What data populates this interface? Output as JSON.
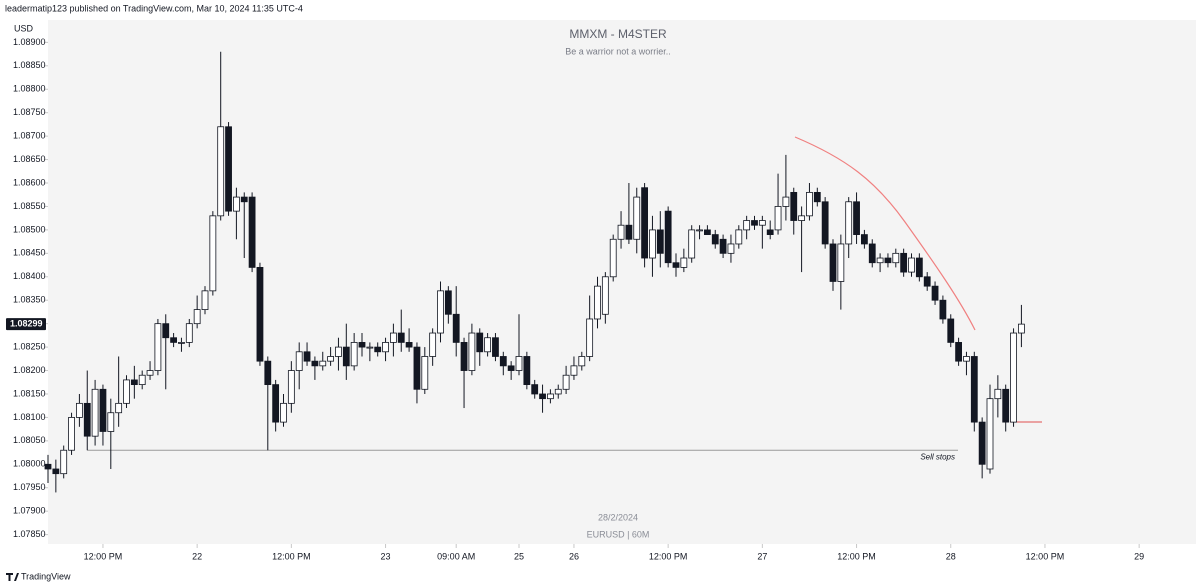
{
  "header": "leadermatip123 published on TradingView.com, Mar 10, 2024 11:35 UTC-4",
  "footer": "TradingView",
  "chart_data": {
    "type": "candlestick",
    "title": "MMXM - M4STER",
    "subtitle": "Be a warrior not a worrier..",
    "watermark_date": "28/2/2024",
    "watermark_symbol": "EURUSD | 60M",
    "currency": "USD",
    "up_color": "#ffffff",
    "down_color": "#131722",
    "last_price": 1.08299,
    "sell_stops": {
      "text": "Sell stops",
      "level": 1.0803
    },
    "ylim": [
      1.0783,
      1.0892
    ],
    "yticks": [
      {
        "value": 1.0785,
        "label": "1.07850"
      },
      {
        "value": 1.079,
        "label": "1.07900"
      },
      {
        "value": 1.0795,
        "label": "1.07950"
      },
      {
        "value": 1.08,
        "label": "1.08000"
      },
      {
        "value": 1.0805,
        "label": "1.08050"
      },
      {
        "value": 1.081,
        "label": "1.08100"
      },
      {
        "value": 1.0815,
        "label": "1.08150"
      },
      {
        "value": 1.082,
        "label": "1.08200"
      },
      {
        "value": 1.0825,
        "label": "1.08250"
      },
      {
        "value": 1.083,
        "label": "1.08300"
      },
      {
        "value": 1.0835,
        "label": "1.08350"
      },
      {
        "value": 1.084,
        "label": "1.08400"
      },
      {
        "value": 1.0845,
        "label": "1.08450"
      },
      {
        "value": 1.085,
        "label": "1.08500"
      },
      {
        "value": 1.0855,
        "label": "1.08550"
      },
      {
        "value": 1.086,
        "label": "1.08600"
      },
      {
        "value": 1.0865,
        "label": "1.08650"
      },
      {
        "value": 1.087,
        "label": "1.08700"
      },
      {
        "value": 1.0875,
        "label": "1.08750"
      },
      {
        "value": 1.088,
        "label": "1.08800"
      },
      {
        "value": 1.0885,
        "label": "1.08850"
      },
      {
        "value": 1.089,
        "label": "1.08900"
      }
    ],
    "categories": [
      null,
      null,
      null,
      null,
      null,
      null,
      null,
      "12:00 PM",
      null,
      null,
      null,
      null,
      null,
      null,
      null,
      null,
      null,
      null,
      null,
      "22",
      null,
      null,
      null,
      null,
      null,
      null,
      null,
      null,
      null,
      null,
      null,
      "12:00 PM",
      null,
      null,
      null,
      null,
      null,
      null,
      null,
      null,
      null,
      null,
      null,
      "23",
      null,
      null,
      null,
      null,
      null,
      null,
      null,
      null,
      "09:00 AM",
      null,
      null,
      null,
      null,
      null,
      null,
      null,
      "25",
      null,
      null,
      null,
      null,
      null,
      null,
      "26",
      null,
      null,
      null,
      null,
      null,
      null,
      null,
      null,
      null,
      null,
      null,
      "12:00 PM",
      null,
      null,
      null,
      null,
      null,
      null,
      null,
      null,
      null,
      null,
      null,
      "27",
      null,
      null,
      null,
      null,
      null,
      null,
      null,
      null,
      null,
      null,
      null,
      "12:00 PM",
      null,
      null,
      null,
      null,
      null,
      null,
      null,
      null,
      null,
      null,
      null,
      "28",
      null,
      null,
      null,
      null,
      null,
      null,
      null,
      null,
      null,
      null,
      null,
      "12:00 PM",
      null,
      null,
      null,
      null,
      null,
      null,
      null,
      null,
      null,
      null,
      null,
      "29"
    ],
    "open": [
      1.08,
      1.0799,
      1.0798,
      1.0803,
      1.081,
      1.0813,
      1.0806,
      1.0816,
      1.0807,
      1.0811,
      1.0813,
      1.0818,
      1.0817,
      1.0819,
      1.082,
      1.083,
      1.0827,
      1.0826,
      1.0826,
      1.083,
      1.0833,
      1.0837,
      1.0853,
      1.0872,
      1.0854,
      1.0857,
      1.0857,
      1.0842,
      1.0822,
      1.0817,
      1.0809,
      1.0813,
      1.082,
      1.0824,
      1.0822,
      1.0821,
      1.0822,
      1.0823,
      1.0825,
      1.0821,
      1.0826,
      1.0825,
      1.0825,
      1.0824,
      1.0826,
      1.0828,
      1.0826,
      1.0825,
      1.0816,
      1.0823,
      1.0828,
      1.0837,
      1.0832,
      1.0826,
      1.082,
      1.0828,
      1.0824,
      1.0827,
      1.0823,
      1.0821,
      1.082,
      1.0823,
      1.0817,
      1.0815,
      1.0814,
      1.0815,
      1.0816,
      1.0819,
      1.0821,
      1.0823,
      1.0831,
      1.0832,
      1.084,
      1.0848,
      1.0851,
      1.0848,
      1.0859,
      1.0844,
      1.085,
      1.0854,
      1.0843,
      1.0842,
      1.0844,
      1.085,
      1.085,
      1.0849,
      1.0848,
      1.0845,
      1.0847,
      1.085,
      1.0852,
      1.0851,
      1.085,
      1.085,
      1.0855,
      1.0858,
      1.0852,
      1.0853,
      1.0858,
      1.0856,
      1.0847,
      1.0839,
      1.0847,
      1.0856,
      1.0849,
      1.0847,
      1.0843,
      1.0844,
      1.0843,
      1.0845,
      1.0841,
      1.0844,
      1.084,
      1.0838,
      1.0835,
      1.0831,
      1.0826,
      1.0822,
      1.0823,
      1.0809,
      1.0799,
      1.0814,
      1.0816,
      1.0809,
      1.0828,
      null,
      null,
      null,
      null,
      null,
      null,
      null,
      null,
      null,
      null,
      null,
      null,
      null,
      null,
      null
    ],
    "high": [
      1.0802,
      1.0801,
      1.0804,
      1.0811,
      1.0815,
      1.082,
      1.0818,
      1.0817,
      1.0814,
      1.0823,
      1.0819,
      1.0821,
      1.082,
      1.0822,
      1.0831,
      1.0832,
      1.0828,
      1.0827,
      1.0831,
      1.0836,
      1.0838,
      1.0854,
      1.0888,
      1.0873,
      1.0859,
      1.0858,
      1.0858,
      1.0843,
      1.0823,
      1.0818,
      1.0815,
      1.0822,
      1.0826,
      1.0826,
      1.0823,
      1.0824,
      1.0825,
      1.0827,
      1.083,
      1.0828,
      1.0828,
      1.0826,
      1.0826,
      1.0827,
      1.083,
      1.0833,
      1.0829,
      1.0826,
      1.0825,
      1.0829,
      1.0839,
      1.0838,
      1.0838,
      1.0827,
      1.083,
      1.0829,
      1.0828,
      1.0828,
      1.0824,
      1.0822,
      1.0832,
      1.0824,
      1.0818,
      1.0817,
      1.0816,
      1.0817,
      1.0821,
      1.0823,
      1.0824,
      1.0836,
      1.084,
      1.0841,
      1.0849,
      1.0854,
      1.086,
      1.0859,
      1.086,
      1.0853,
      1.0854,
      1.0855,
      1.0845,
      1.0846,
      1.0851,
      1.0851,
      1.0851,
      1.085,
      1.0849,
      1.0849,
      1.0851,
      1.0853,
      1.0853,
      1.0853,
      1.0852,
      1.0862,
      1.0866,
      1.0859,
      1.0855,
      1.086,
      1.0859,
      1.0857,
      1.0848,
      1.0849,
      1.0857,
      1.0858,
      1.085,
      1.0848,
      1.0845,
      1.0845,
      1.0846,
      1.0846,
      1.0845,
      1.0845,
      1.0841,
      1.0839,
      1.0836,
      1.0832,
      1.0827,
      1.0824,
      1.0824,
      1.081,
      1.0817,
      1.0819,
      1.0817,
      1.0829,
      1.0834,
      null,
      null,
      null,
      null,
      null,
      null,
      null,
      null,
      null,
      null,
      null,
      null,
      null,
      null,
      null
    ],
    "low": [
      1.0796,
      1.0794,
      1.0797,
      1.0802,
      1.0808,
      1.0803,
      1.0804,
      1.0804,
      1.0799,
      1.0808,
      1.0812,
      1.0814,
      1.0816,
      1.0818,
      1.0819,
      1.0816,
      1.0825,
      1.0824,
      1.0825,
      1.0829,
      1.0832,
      1.0836,
      1.0852,
      1.0853,
      1.0848,
      1.0844,
      1.0841,
      1.0821,
      1.0803,
      1.0807,
      1.0808,
      1.0811,
      1.0816,
      1.0821,
      1.0818,
      1.082,
      1.0821,
      1.082,
      1.0818,
      1.082,
      1.0823,
      1.0822,
      1.0823,
      1.0822,
      1.0823,
      1.0824,
      1.0824,
      1.0813,
      1.0815,
      1.0821,
      1.0826,
      1.083,
      1.0823,
      1.0812,
      1.0819,
      1.0821,
      1.0823,
      1.0822,
      1.0819,
      1.0818,
      1.0819,
      1.0816,
      1.0814,
      1.0811,
      1.0813,
      1.0814,
      1.0815,
      1.0818,
      1.082,
      1.0822,
      1.0829,
      1.083,
      1.0839,
      1.0846,
      1.0847,
      1.0845,
      1.0842,
      1.084,
      1.0842,
      1.0842,
      1.084,
      1.0841,
      1.0843,
      1.0848,
      1.0849,
      1.0846,
      1.0844,
      1.0843,
      1.0846,
      1.0848,
      1.085,
      1.0846,
      1.0848,
      1.0849,
      1.0852,
      1.0849,
      1.0841,
      1.0852,
      1.0855,
      1.0846,
      1.0837,
      1.0833,
      1.0844,
      1.0847,
      1.0846,
      1.0842,
      1.0841,
      1.0842,
      1.0842,
      1.084,
      1.084,
      1.0839,
      1.0837,
      1.0834,
      1.083,
      1.0825,
      1.0821,
      1.0819,
      1.0807,
      1.0797,
      1.0798,
      1.081,
      1.0807,
      1.0808,
      1.0825,
      null,
      null,
      null,
      null,
      null,
      null,
      null,
      null,
      null,
      null,
      null,
      null,
      null,
      null,
      null
    ],
    "close": [
      1.0799,
      1.0798,
      1.0803,
      1.081,
      1.0813,
      1.0806,
      1.0816,
      1.0807,
      1.0811,
      1.0813,
      1.0818,
      1.0817,
      1.0819,
      1.082,
      1.083,
      1.0827,
      1.0826,
      1.0826,
      1.083,
      1.0833,
      1.0837,
      1.0853,
      1.0872,
      1.0854,
      1.0857,
      1.0856,
      1.0842,
      1.0822,
      1.0817,
      1.0809,
      1.0813,
      1.082,
      1.0824,
      1.0822,
      1.0821,
      1.0822,
      1.0823,
      1.0825,
      1.0821,
      1.0826,
      1.0825,
      1.0825,
      1.0824,
      1.0826,
      1.0828,
      1.0826,
      1.0825,
      1.0816,
      1.0823,
      1.0828,
      1.0837,
      1.0832,
      1.0826,
      1.082,
      1.0828,
      1.0824,
      1.0827,
      1.0823,
      1.0821,
      1.082,
      1.0823,
      1.0817,
      1.0815,
      1.0814,
      1.0815,
      1.0816,
      1.0819,
      1.0821,
      1.0823,
      1.0831,
      1.0838,
      1.084,
      1.0848,
      1.0851,
      1.0848,
      1.0857,
      1.0844,
      1.085,
      1.0845,
      1.0843,
      1.0842,
      1.0844,
      1.085,
      1.085,
      1.0849,
      1.0847,
      1.0845,
      1.0847,
      1.085,
      1.0852,
      1.0851,
      1.0852,
      1.0849,
      1.0855,
      1.0857,
      1.0852,
      1.0853,
      1.0858,
      1.0856,
      1.0847,
      1.0839,
      1.0847,
      1.0856,
      1.0849,
      1.0847,
      1.0843,
      1.0844,
      1.0843,
      1.0845,
      1.0841,
      1.0844,
      1.084,
      1.0838,
      1.0835,
      1.0831,
      1.0826,
      1.0822,
      1.0823,
      1.0809,
      1.08,
      1.0814,
      1.0816,
      1.0809,
      1.0828,
      1.08299,
      null,
      null,
      null,
      null,
      null,
      null,
      null,
      null,
      null,
      null,
      null,
      null,
      null,
      null,
      null
    ]
  }
}
